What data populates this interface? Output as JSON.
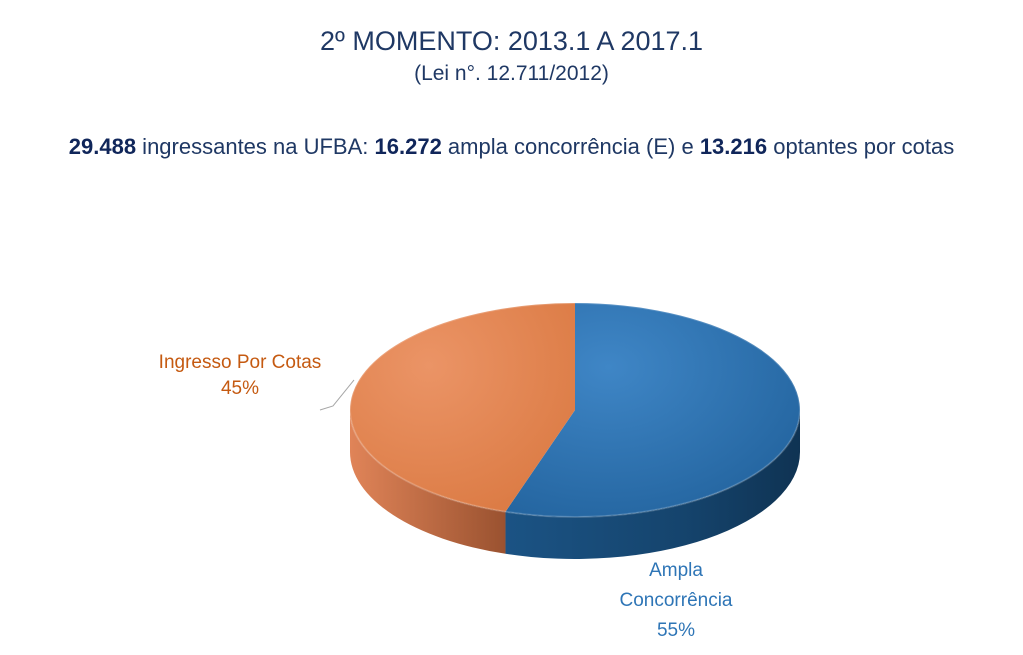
{
  "header": {
    "title": "2º MOMENTO: 2013.1 A 2017.1",
    "subtitle": "(Lei n°. 12.711/2012)"
  },
  "summary": {
    "total": "29.488",
    "text1": " ingressantes na UFBA: ",
    "ampla": "16.272",
    "text2": " ampla concorrência (E) e ",
    "cotas": "13.216",
    "text3": " optantes por cotas"
  },
  "chart_data": {
    "type": "pie",
    "style": "3d",
    "slices": [
      {
        "name": "Ampla Concorrência",
        "label_lines": [
          "Ampla",
          "Concorrência"
        ],
        "percent_label": "55%",
        "value": 55,
        "color": "#2e75b6"
      },
      {
        "name": "Ingresso Por Cotas",
        "label_lines": [
          "Ingresso Por Cotas"
        ],
        "percent_label": "45%",
        "value": 45,
        "color": "#e88c5a"
      }
    ],
    "label_colors": {
      "Ampla Concorrência": "#2e75b6",
      "Ingresso Por Cotas": "#c55a11"
    }
  }
}
